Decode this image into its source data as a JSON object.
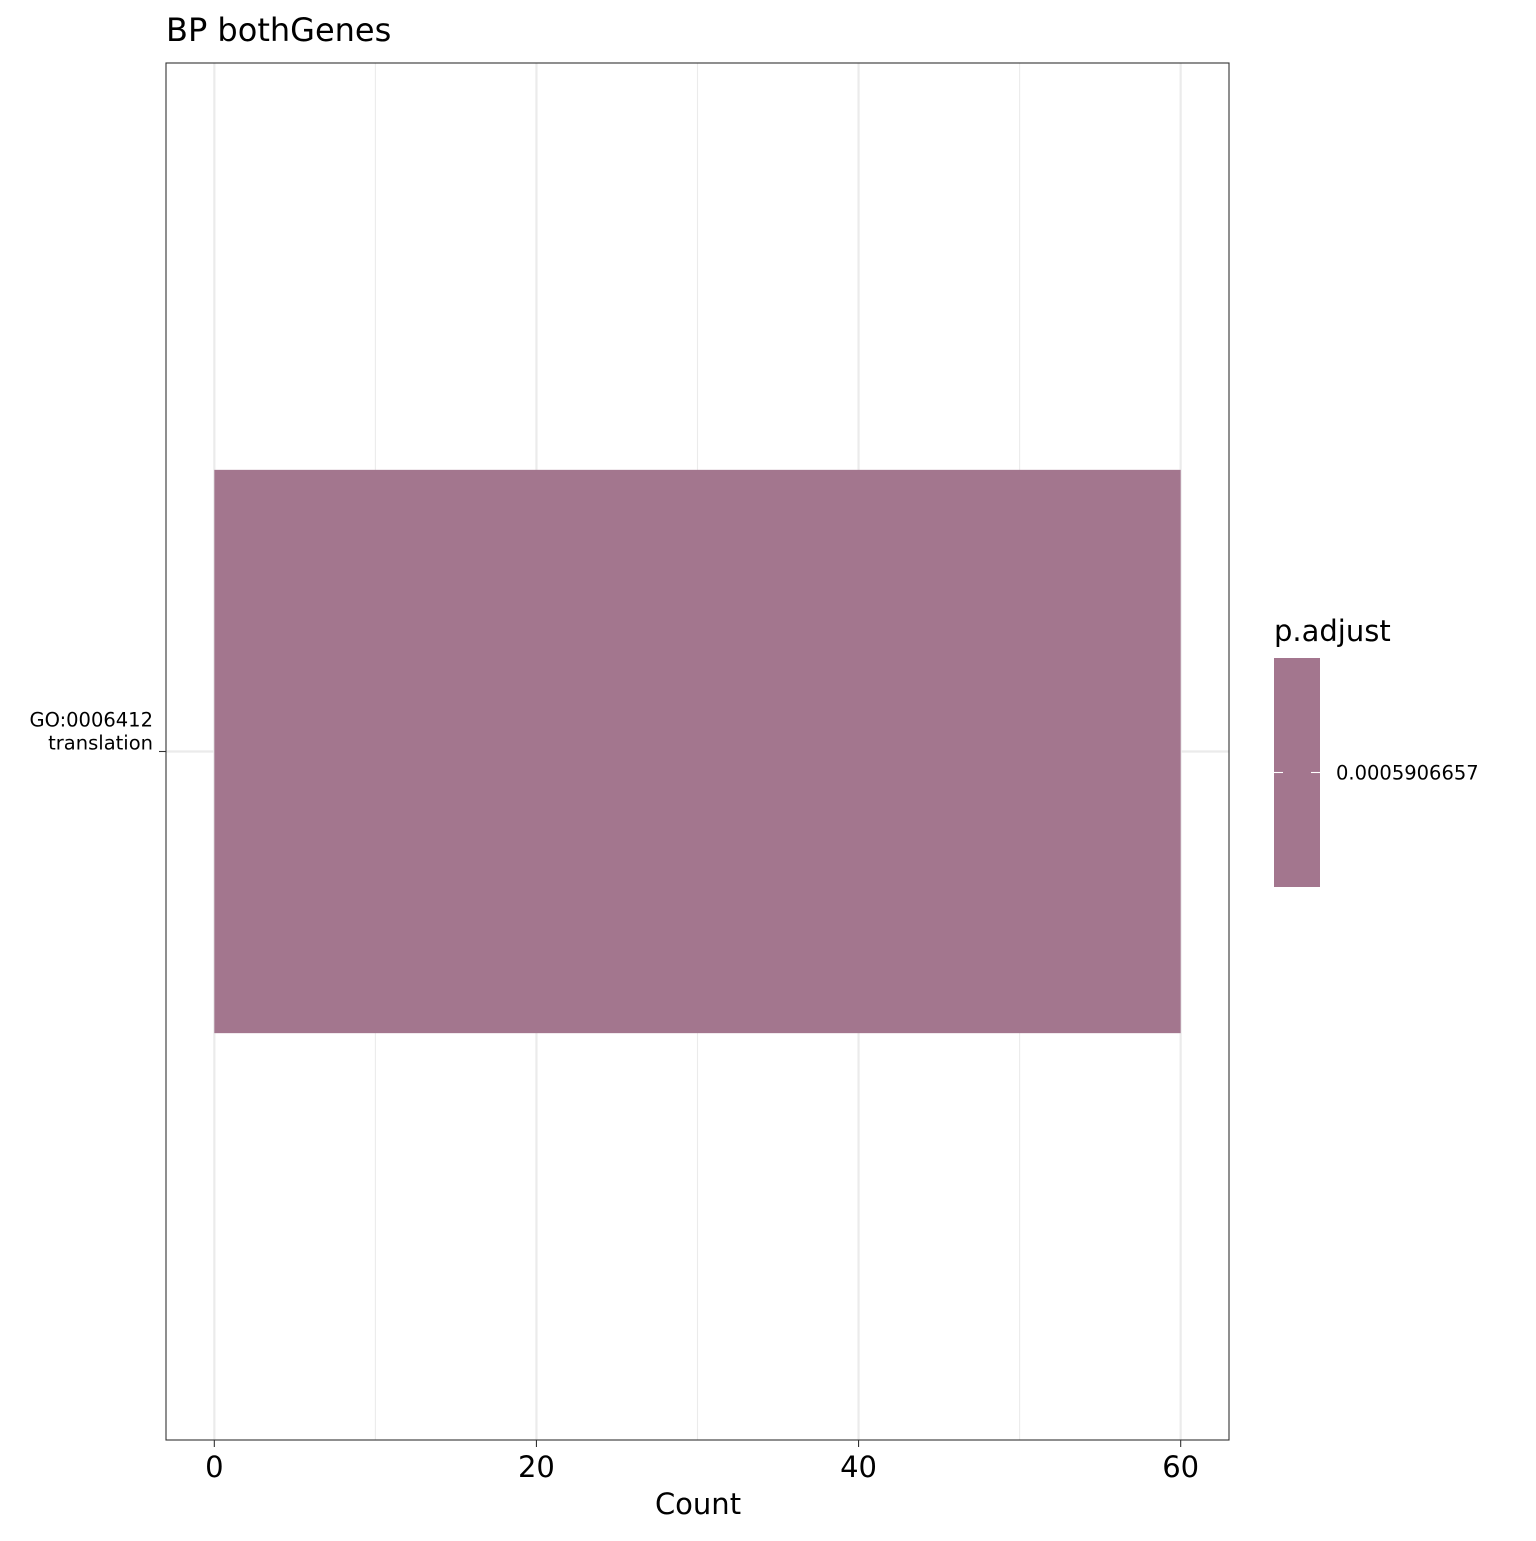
{
  "chart_data": {
    "type": "bar",
    "orientation": "horizontal",
    "title": "BP bothGenes",
    "xlabel": "Count",
    "ylabel": "",
    "categories": [
      "GO:0006412\ntranslation"
    ],
    "values": [
      60
    ],
    "xlim": [
      -3,
      63
    ],
    "x_ticks": [
      0,
      20,
      40,
      60
    ],
    "x_minor_ticks": [
      10,
      30,
      50
    ],
    "grid": true,
    "bar_color": "#A3768E",
    "legend": {
      "title": "p.adjust",
      "position": "right",
      "labels": [
        "0.0005906657"
      ],
      "color": "#A3768E"
    }
  }
}
